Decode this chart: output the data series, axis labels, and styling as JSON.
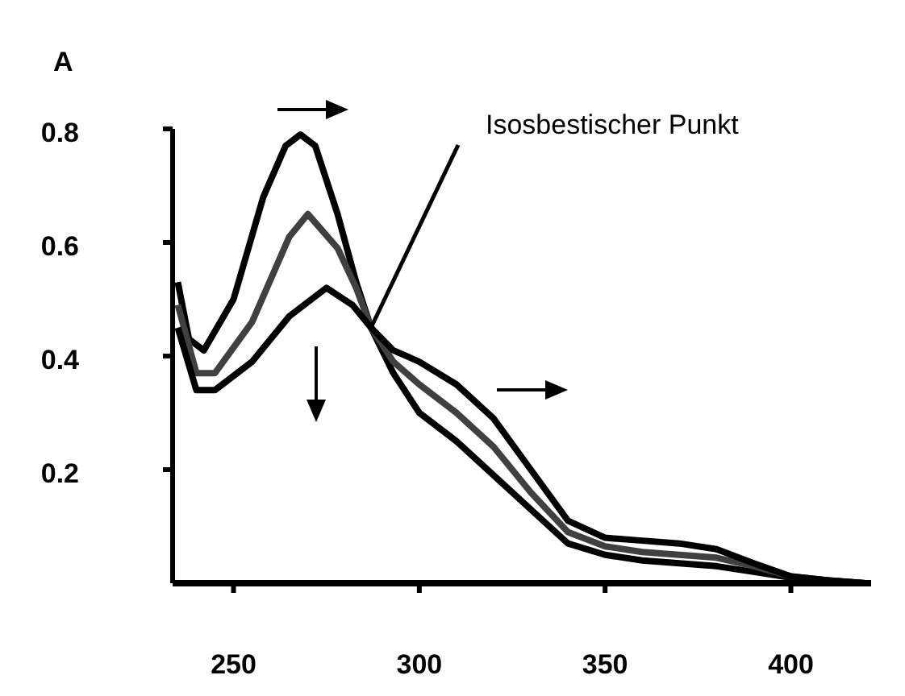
{
  "chart_data": {
    "type": "line",
    "ylabel": "A",
    "xlim": [
      233.6,
      421.6
    ],
    "xticks": [
      250,
      300,
      350,
      400
    ],
    "ylim": [
      0,
      0.8
    ],
    "yticks": [
      0.2,
      0.4,
      0.6,
      0.8
    ],
    "marker": "none",
    "line_style": "solid",
    "annotations": [
      {
        "text": "Isosbestischer Punkt",
        "x": 287,
        "y": 0.45
      }
    ],
    "series": [
      {
        "color": "#000000",
        "x": [
          235,
          238,
          242,
          250,
          258,
          264,
          268,
          272,
          278,
          283,
          287,
          293,
          300,
          310,
          320,
          330,
          340,
          350,
          360,
          370,
          380,
          390,
          400,
          410,
          420
        ],
        "values": [
          0.53,
          0.43,
          0.41,
          0.5,
          0.68,
          0.77,
          0.79,
          0.77,
          0.65,
          0.53,
          0.45,
          0.37,
          0.3,
          0.25,
          0.19,
          0.13,
          0.07,
          0.05,
          0.04,
          0.035,
          0.03,
          0.02,
          0.01,
          0.005,
          0
        ]
      },
      {
        "color": "#404040",
        "x": [
          235,
          240,
          245,
          255,
          265,
          270,
          278,
          283,
          287,
          293,
          300,
          310,
          320,
          330,
          340,
          350,
          360,
          370,
          380,
          390,
          400,
          410,
          420
        ],
        "values": [
          0.49,
          0.37,
          0.37,
          0.46,
          0.61,
          0.65,
          0.59,
          0.52,
          0.45,
          0.39,
          0.35,
          0.3,
          0.24,
          0.16,
          0.09,
          0.065,
          0.055,
          0.05,
          0.045,
          0.03,
          0.012,
          0.005,
          0
        ]
      },
      {
        "color": "#000000",
        "x": [
          235,
          240,
          245,
          255,
          265,
          275,
          282,
          287,
          293,
          300,
          310,
          320,
          330,
          340,
          350,
          360,
          370,
          380,
          390,
          400,
          410,
          420
        ],
        "values": [
          0.45,
          0.34,
          0.34,
          0.39,
          0.47,
          0.52,
          0.49,
          0.45,
          0.41,
          0.39,
          0.35,
          0.29,
          0.2,
          0.11,
          0.08,
          0.075,
          0.07,
          0.06,
          0.035,
          0.012,
          0.005,
          0
        ]
      }
    ]
  }
}
